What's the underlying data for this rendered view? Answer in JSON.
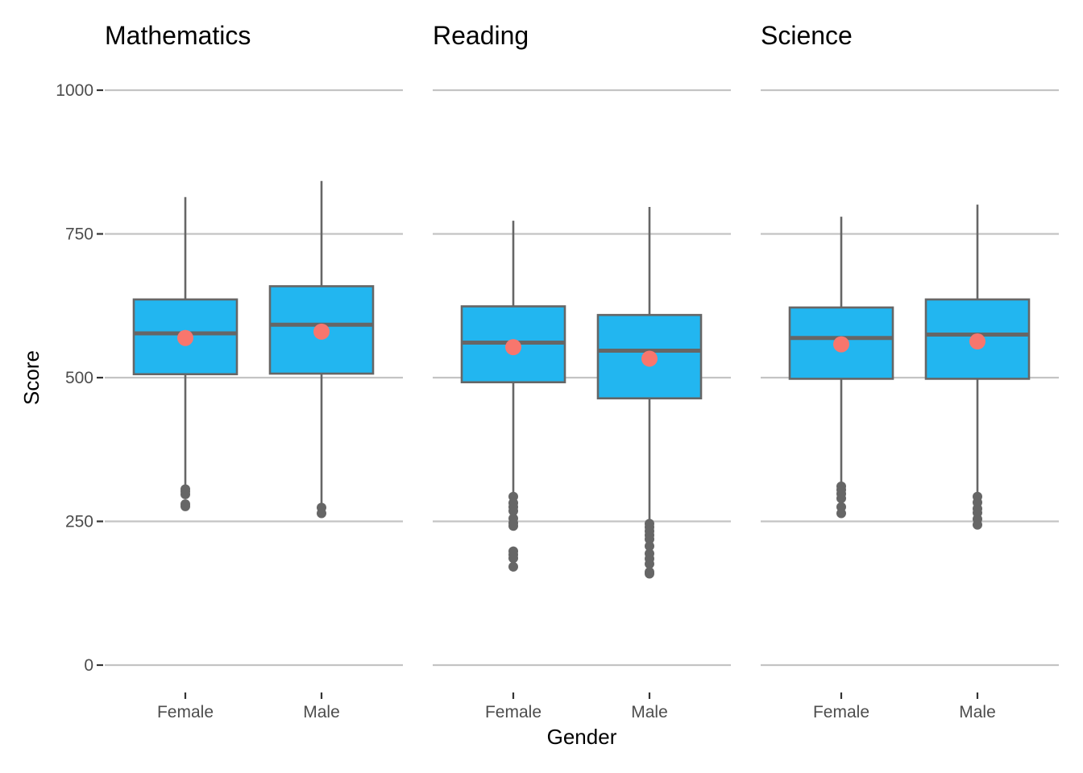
{
  "chart_data": {
    "type": "box",
    "xlabel": "Gender",
    "ylabel": "Score",
    "ylim": [
      0,
      1000
    ],
    "yticks": [
      0,
      250,
      500,
      750,
      1000
    ],
    "grid": true,
    "categories": [
      "Female",
      "Male"
    ],
    "colors": {
      "box_fill": "#22b6f0",
      "box_line": "#666666",
      "mean_point": "#f8766d",
      "outlier": "#666666",
      "grid": "#c4c4c4"
    },
    "facets": [
      {
        "title": "Mathematics",
        "groups": [
          {
            "label": "Female",
            "lower_whisker": 306,
            "q1": 506,
            "median": 577,
            "q3": 636,
            "upper_whisker": 814,
            "mean": 569,
            "outliers": [
              306,
              302,
              297,
              280,
              276
            ]
          },
          {
            "label": "Male",
            "lower_whisker": 280,
            "q1": 507,
            "median": 592,
            "q3": 659,
            "upper_whisker": 842,
            "mean": 580,
            "outliers": [
              274,
              264
            ]
          }
        ]
      },
      {
        "title": "Reading",
        "groups": [
          {
            "label": "Female",
            "lower_whisker": 295,
            "q1": 492,
            "median": 561,
            "q3": 624,
            "upper_whisker": 773,
            "mean": 553,
            "outliers": [
              293,
              282,
              275,
              268,
              255,
              247,
              242,
              198,
              192,
              186,
              171
            ]
          },
          {
            "label": "Male",
            "lower_whisker": 250,
            "q1": 464,
            "median": 547,
            "q3": 609,
            "upper_whisker": 797,
            "mean": 533,
            "outliers": [
              246,
              240,
              233,
              226,
              219,
              207,
              194,
              185,
              176,
              162,
              159
            ]
          }
        ]
      },
      {
        "title": "Science",
        "groups": [
          {
            "label": "Female",
            "lower_whisker": 315,
            "q1": 498,
            "median": 569,
            "q3": 622,
            "upper_whisker": 780,
            "mean": 558,
            "outliers": [
              311,
              305,
              298,
              290,
              275,
              264
            ]
          },
          {
            "label": "Male",
            "lower_whisker": 295,
            "q1": 498,
            "median": 575,
            "q3": 636,
            "upper_whisker": 801,
            "mean": 563,
            "outliers": [
              293,
              283,
              272,
              265,
              254,
              244
            ]
          }
        ]
      }
    ]
  }
}
